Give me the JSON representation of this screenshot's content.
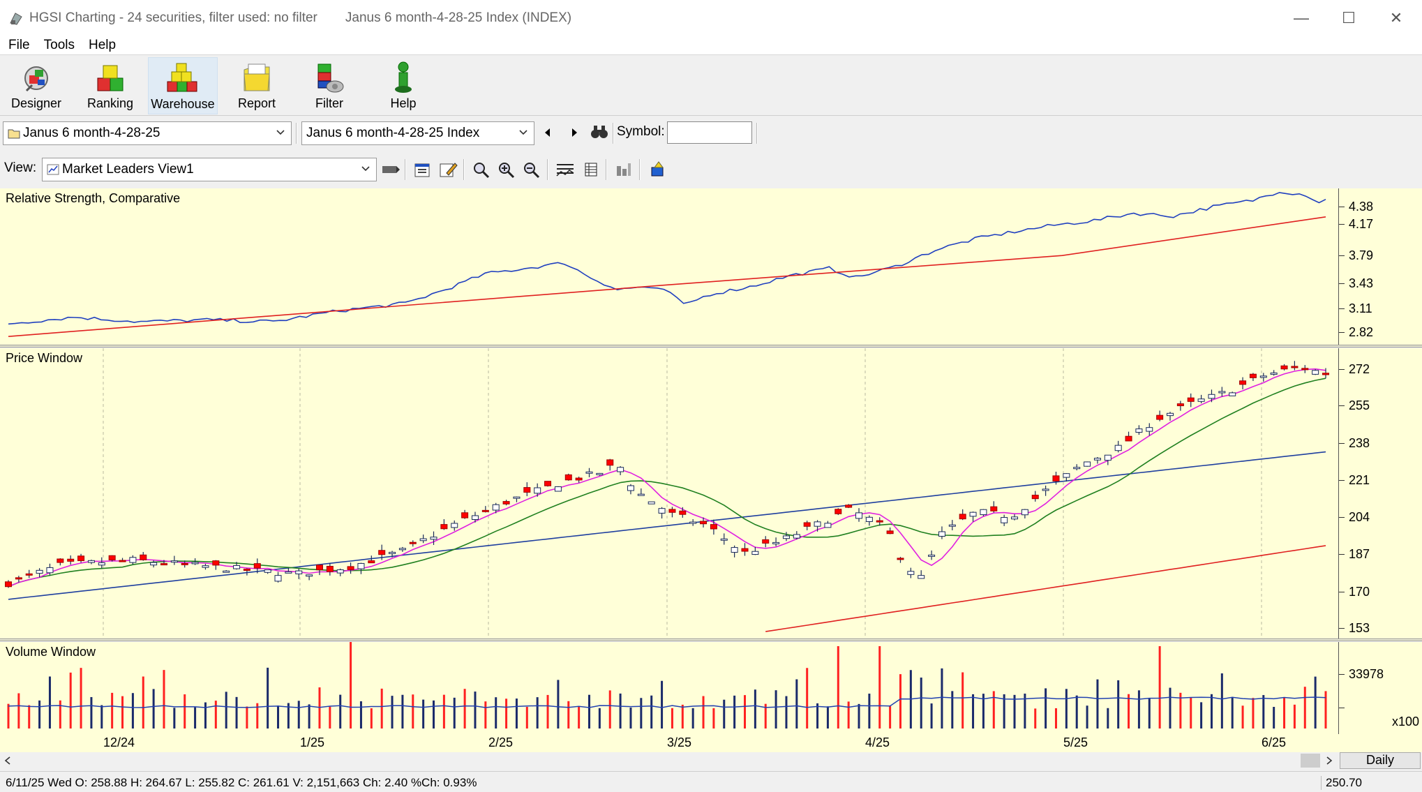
{
  "window": {
    "title": "HGSI Charting - 24 securities, filter used: no filter",
    "subtitle": "Janus 6 month-4-28-25 Index (INDEX)",
    "minimize": "—",
    "maximize": "☐",
    "close": "✕"
  },
  "menu": [
    "File",
    "Tools",
    "Help"
  ],
  "toolbar": [
    {
      "label": "Designer",
      "icon": "designer-icon"
    },
    {
      "label": "Ranking",
      "icon": "ranking-icon"
    },
    {
      "label": "Warehouse",
      "icon": "warehouse-icon",
      "active": true
    },
    {
      "label": "Report",
      "icon": "report-icon"
    },
    {
      "label": "Filter",
      "icon": "filter-icon"
    },
    {
      "label": "Help",
      "icon": "help-icon"
    }
  ],
  "selectors": {
    "list": "Janus 6 month-4-28-25",
    "security": "Janus 6 month-4-28-25 Index",
    "symbol_label": "Symbol:",
    "symbol_value": ""
  },
  "view": {
    "label": "View:",
    "value": "Market Leaders View1"
  },
  "panels": {
    "rs": {
      "title": "Relative Strength, Comparative",
      "ticks": [
        "4.38",
        "4.17",
        "3.79",
        "3.43",
        "3.11",
        "2.82"
      ]
    },
    "price": {
      "title": "Price Window",
      "ticks": [
        "272",
        "255",
        "238",
        "221",
        "204",
        "187",
        "170",
        "153"
      ]
    },
    "volume": {
      "title": "Volume Window",
      "ticks": [
        "33978"
      ],
      "multiplier": "x100"
    }
  },
  "date_axis": [
    "12/24",
    "1/25",
    "2/25",
    "3/25",
    "4/25",
    "5/25",
    "6/25"
  ],
  "interval": "Daily",
  "status": {
    "quote": "6/11/25 Wed O: 258.88 H: 264.67 L: 255.82 C: 261.61 V: 2,151,663 Ch: 2.40 %Ch: 0.93%",
    "cursor_value": "250.70"
  },
  "colors": {
    "panel_bg": "#ffffd8",
    "up_candle": "#ffffff",
    "down_candle": "#ff0000",
    "rs_line": "#1f3fbf",
    "rs_ma": "#e02020",
    "ma_fast": "#e020e0",
    "ma_mid": "#208020",
    "ma_slow": "#1f3f9f",
    "ma_long": "#e02020"
  },
  "chart_data": {
    "type": "candlestick",
    "series": [
      {
        "name": "Price",
        "ohlc_sample": [
          {
            "date": "12/24",
            "close": 184
          },
          {
            "date": "1/25",
            "close": 181
          },
          {
            "date": "2/25",
            "close": 214
          },
          {
            "date": "3/25",
            "close": 200
          },
          {
            "date": "4/25",
            "close": 181
          },
          {
            "date": "5/25",
            "close": 236
          },
          {
            "date": "6/25",
            "close": 265
          }
        ]
      },
      {
        "name": "RS Comparative",
        "values_sample": [
          3.05,
          3.1,
          3.55,
          3.45,
          3.35,
          3.95,
          4.45
        ]
      }
    ],
    "ylim_price": [
      153,
      272
    ],
    "ylim_rs": [
      2.82,
      4.45
    ],
    "last_bar": {
      "date": "6/11/25",
      "open": 258.88,
      "high": 264.67,
      "low": 255.82,
      "close": 261.61,
      "volume": 2151663
    }
  }
}
